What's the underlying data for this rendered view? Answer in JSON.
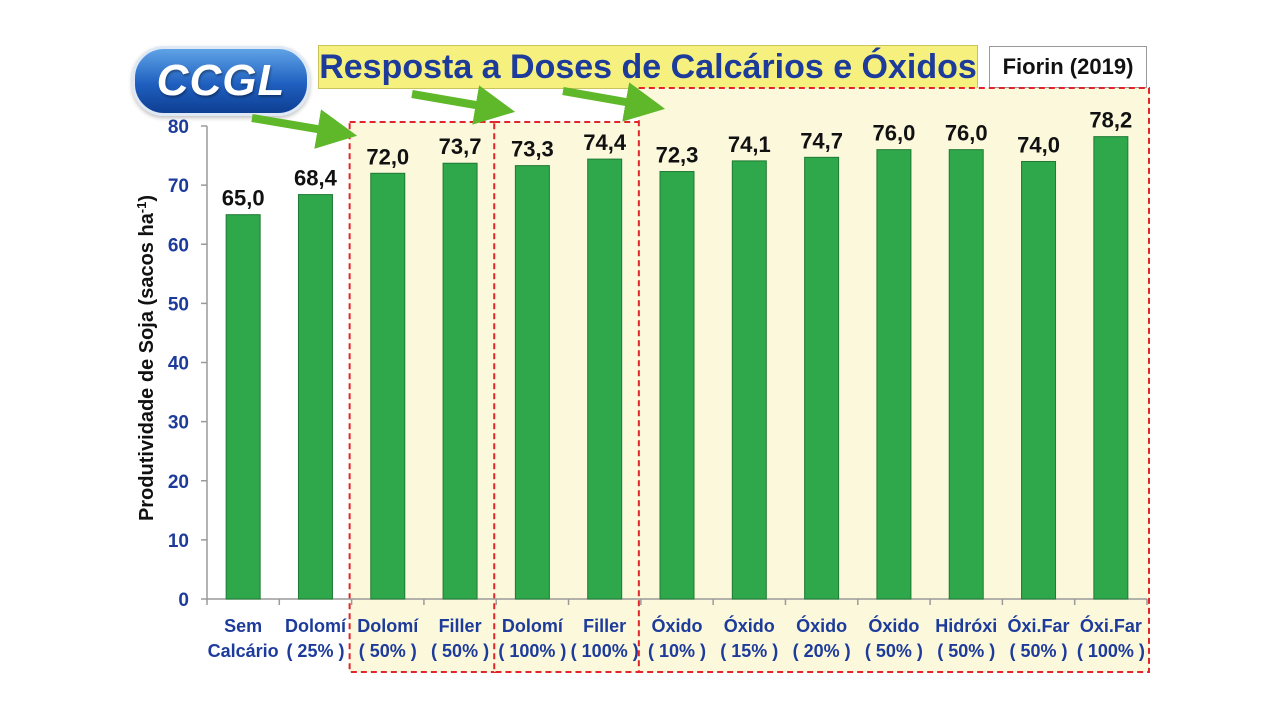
{
  "header": {
    "logo_text": "CCGL",
    "title": "Resposta a Doses de Calcários e Óxidos",
    "reference": "Fiorin (2019)"
  },
  "colors": {
    "bar": "#2ea84a",
    "bar_edge": "#1f7a34",
    "highlight_fill": "#fbf8dc",
    "dashed_border": "#e0262b",
    "arrow": "#5fb82a",
    "axis_text": "#1d3b9a"
  },
  "chart_data": {
    "type": "bar",
    "ylabel": "Produtividade de Soja (sacos ha-1)",
    "ylabel_main": "Produtividade de Soja (sacos ha",
    "ylabel_sup": "-1",
    "ylabel_close": ")",
    "ylim": [
      0,
      80
    ],
    "yticks": [
      0,
      10,
      20,
      30,
      40,
      50,
      60,
      70,
      80
    ],
    "grid": false,
    "categories": [
      [
        "Sem",
        "Calcário"
      ],
      [
        "Dolomí",
        "( 25% )"
      ],
      [
        "Dolomí",
        "( 50% )"
      ],
      [
        "Filler",
        "( 50% )"
      ],
      [
        "Dolomí",
        "( 100% )"
      ],
      [
        "Filler",
        "( 100% )"
      ],
      [
        "Óxido",
        "( 10% )"
      ],
      [
        "Óxido",
        "( 15% )"
      ],
      [
        "Óxido",
        "( 20% )"
      ],
      [
        "Óxido",
        "( 50% )"
      ],
      [
        "Hidróxi",
        "( 50% )"
      ],
      [
        "Óxi.Far",
        "( 50% )"
      ],
      [
        "Óxi.Far",
        "( 100% )"
      ]
    ],
    "values": [
      65.0,
      68.4,
      72.0,
      73.7,
      73.3,
      74.4,
      72.3,
      74.1,
      74.7,
      76.0,
      76.0,
      74.0,
      78.2
    ],
    "value_labels": [
      "65,0",
      "68,4",
      "72,0",
      "73,7",
      "73,3",
      "74,4",
      "72,3",
      "74,1",
      "74,7",
      "76,0",
      "76,0",
      "74,0",
      "78,2"
    ],
    "highlight_groups": [
      {
        "from": 2,
        "to": 3
      },
      {
        "from": 4,
        "to": 5
      },
      {
        "from": 6,
        "to": 12
      }
    ]
  }
}
